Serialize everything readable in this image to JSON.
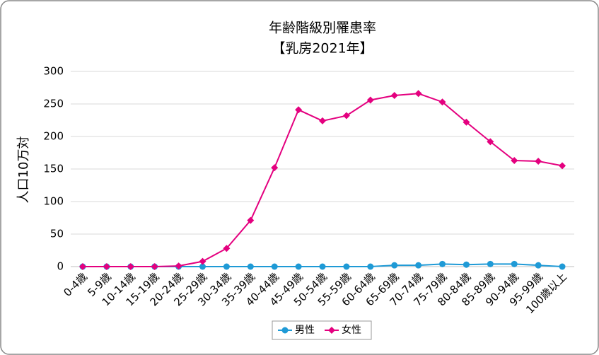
{
  "chart_data": {
    "type": "line",
    "title": "年齢階級別罹患率",
    "subtitle": "【乳房2021年】",
    "y_label": "人口10万対",
    "categories": [
      "0-4歳",
      "5-9歳",
      "10-14歳",
      "15-19歳",
      "20-24歳",
      "25-29歳",
      "30-34歳",
      "35-39歳",
      "40-44歳",
      "45-49歳",
      "50-54歳",
      "55-59歳",
      "60-64歳",
      "65-69歳",
      "70-74歳",
      "75-79歳",
      "80-84歳",
      "85-89歳",
      "90-94歳",
      "95-99歳",
      "100歳以上"
    ],
    "series": [
      {
        "name": "男性",
        "color": "#1f9ad6",
        "marker": "circle",
        "values": [
          0,
          0,
          0,
          0,
          0,
          0,
          0,
          0,
          0,
          0,
          0,
          0,
          0,
          2,
          2,
          4,
          3,
          4,
          4,
          2,
          0
        ]
      },
      {
        "name": "女性",
        "color": "#e4007f",
        "marker": "diamond",
        "values": [
          0,
          0,
          0,
          0,
          1,
          8,
          28,
          71,
          152,
          241,
          224,
          232,
          256,
          263,
          266,
          253,
          222,
          192,
          163,
          162,
          155
        ]
      }
    ],
    "ylim": [
      0,
      300
    ],
    "yticks": [
      0,
      50,
      100,
      150,
      200,
      250,
      300
    ],
    "grid": true,
    "legend": "bottom"
  }
}
